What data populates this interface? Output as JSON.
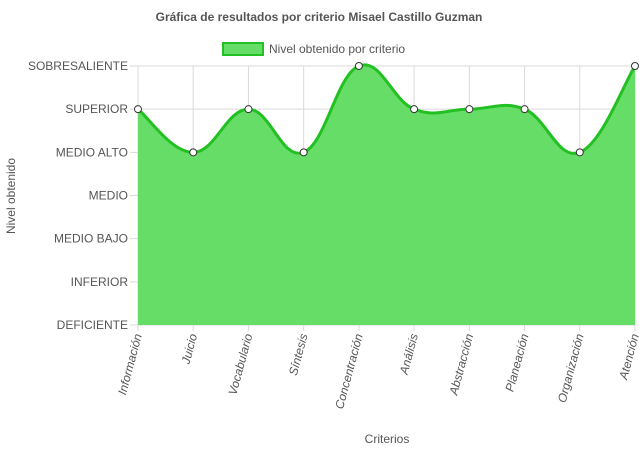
{
  "chart_data": {
    "type": "area",
    "title": "Gráfica de resultados por criterio Misael Castillo Guzman",
    "xlabel": "Criterios",
    "ylabel": "Nivel obtenido",
    "y_levels": [
      "DEFICIENTE",
      "INFERIOR",
      "MEDIO BAJO",
      "MEDIO",
      "MEDIO ALTO",
      "SUPERIOR",
      "SOBRESALIENTE"
    ],
    "ylim": [
      0,
      6
    ],
    "categories": [
      "Información",
      "Juicio",
      "Vocabulario",
      "Síntesis",
      "Concentración",
      "Análisis",
      "Abstracción",
      "Planeación",
      "Organización",
      "Atención"
    ],
    "series": [
      {
        "name": "Nivel obtenido por criterio",
        "values": [
          5,
          4,
          5,
          4,
          6,
          5,
          5,
          5,
          4,
          6
        ],
        "fill_color": "#66dd66",
        "line_color": "#22c022"
      }
    ],
    "legend_position": "top",
    "grid": true,
    "grid_color": "#d9d9d9"
  }
}
